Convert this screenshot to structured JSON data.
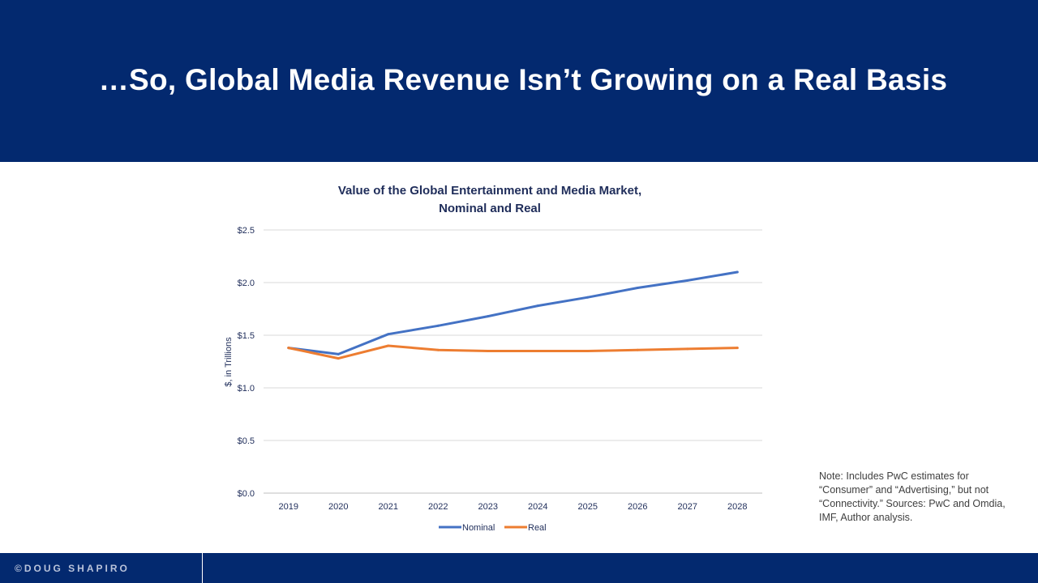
{
  "header": {
    "title": "…So, Global Media Revenue Isn’t Growing on a Real Basis"
  },
  "footer": {
    "brand": "©DOUG SHAPIRO"
  },
  "note": "Note: Includes PwC estimates for “Consumer” and “Advertising,” but not “Connectivity.” Sources: PwC and Omdia, IMF, Author analysis.",
  "colors": {
    "header_bg": "#03296f",
    "nominal": "#4472c4",
    "real": "#ed7d31"
  },
  "chart_data": {
    "type": "line",
    "title_lines": [
      "Value of the Global Entertainment and Media Market,",
      "Nominal and Real"
    ],
    "ylabel": "$, in Trillions",
    "xlabel": "",
    "categories": [
      "2019",
      "2020",
      "2021",
      "2022",
      "2023",
      "2024",
      "2025",
      "2026",
      "2027",
      "2028"
    ],
    "ylim": [
      0,
      2.5
    ],
    "yticks": [
      {
        "value": 0,
        "label": "$0.0"
      },
      {
        "value": 0.5,
        "label": "$0.5"
      },
      {
        "value": 1.0,
        "label": "$1.0"
      },
      {
        "value": 1.5,
        "label": "$1.5"
      },
      {
        "value": 2.0,
        "label": "$2.0"
      },
      {
        "value": 2.5,
        "label": "$2.5"
      }
    ],
    "grid": true,
    "legend_position": "bottom",
    "series": [
      {
        "name": "Nominal",
        "color": "#4472c4",
        "values": [
          1.38,
          1.32,
          1.51,
          1.59,
          1.68,
          1.78,
          1.86,
          1.95,
          2.02,
          2.1
        ]
      },
      {
        "name": "Real",
        "color": "#ed7d31",
        "values": [
          1.38,
          1.28,
          1.4,
          1.36,
          1.35,
          1.35,
          1.35,
          1.36,
          1.37,
          1.38
        ]
      }
    ]
  }
}
